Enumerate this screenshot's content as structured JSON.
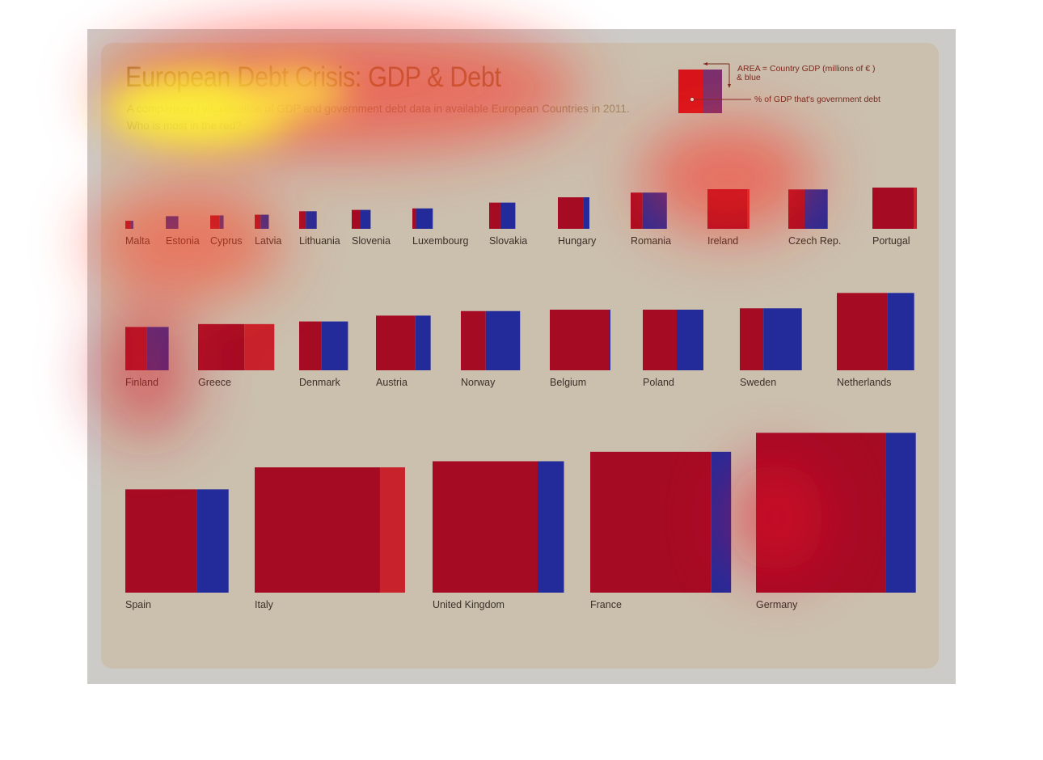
{
  "title": "European Debt Crisis: GDP & Debt",
  "subtitle_line1": "A comparison / visualisation of GDP and government debt data in available European Countries in 2011.",
  "subtitle_line2": "Who is most in the red?",
  "legend": {
    "area_label": "AREA = Country GDP (millions of  € )",
    "area_label2": "& blue",
    "debt_label": "% of GDP that's government debt"
  },
  "colors": {
    "gdp": "#a60b24",
    "remainder": "#232b9a",
    "over": "#c8222c",
    "panel": "#cbbfae"
  },
  "chart_data": {
    "type": "bar",
    "encoding": "square area = GDP (millions of €); red share of width = government debt as % of GDP; blue = remainder",
    "units": {
      "gdp": "millions of €",
      "debt": "% of GDP"
    },
    "rows": [
      {
        "countries": [
          {
            "name": "Malta",
            "gdp": 6500,
            "debt": 71
          },
          {
            "name": "Estonia",
            "gdp": 16000,
            "debt": 6
          },
          {
            "name": "Cyprus",
            "gdp": 18000,
            "debt": 71
          },
          {
            "name": "Latvia",
            "gdp": 20000,
            "debt": 42
          },
          {
            "name": "Lithuania",
            "gdp": 31000,
            "debt": 38
          },
          {
            "name": "Slovenia",
            "gdp": 36000,
            "debt": 47
          },
          {
            "name": "Luxembourg",
            "gdp": 42000,
            "debt": 18
          },
          {
            "name": "Slovakia",
            "gdp": 69000,
            "debt": 43
          },
          {
            "name": "Hungary",
            "gdp": 100000,
            "debt": 81
          },
          {
            "name": "Romania",
            "gdp": 132000,
            "debt": 33
          },
          {
            "name": "Ireland",
            "gdp": 158000,
            "debt": 106
          },
          {
            "name": "Czech Rep.",
            "gdp": 156000,
            "debt": 41
          },
          {
            "name": "Portugal",
            "gdp": 171000,
            "debt": 108
          }
        ]
      },
      {
        "countries": [
          {
            "name": "Finland",
            "gdp": 189000,
            "debt": 49
          },
          {
            "name": "Greece",
            "gdp": 215000,
            "debt": 165
          },
          {
            "name": "Denmark",
            "gdp": 240000,
            "debt": 46
          },
          {
            "name": "Austria",
            "gdp": 301000,
            "debt": 72
          },
          {
            "name": "Norway",
            "gdp": 353000,
            "debt": 42
          },
          {
            "name": "Belgium",
            "gdp": 370000,
            "debt": 98
          },
          {
            "name": "Poland",
            "gdp": 370000,
            "debt": 56
          },
          {
            "name": "Sweden",
            "gdp": 387000,
            "debt": 38
          },
          {
            "name": "Netherlands",
            "gdp": 602000,
            "debt": 65
          }
        ]
      },
      {
        "countries": [
          {
            "name": "Spain",
            "gdp": 1073000,
            "debt": 69
          },
          {
            "name": "Italy",
            "gdp": 1580000,
            "debt": 120
          },
          {
            "name": "United Kingdom",
            "gdp": 1737000,
            "debt": 80
          },
          {
            "name": "France",
            "gdp": 1996000,
            "debt": 86
          },
          {
            "name": "Germany",
            "gdp": 2571000,
            "debt": 81
          }
        ]
      }
    ]
  }
}
